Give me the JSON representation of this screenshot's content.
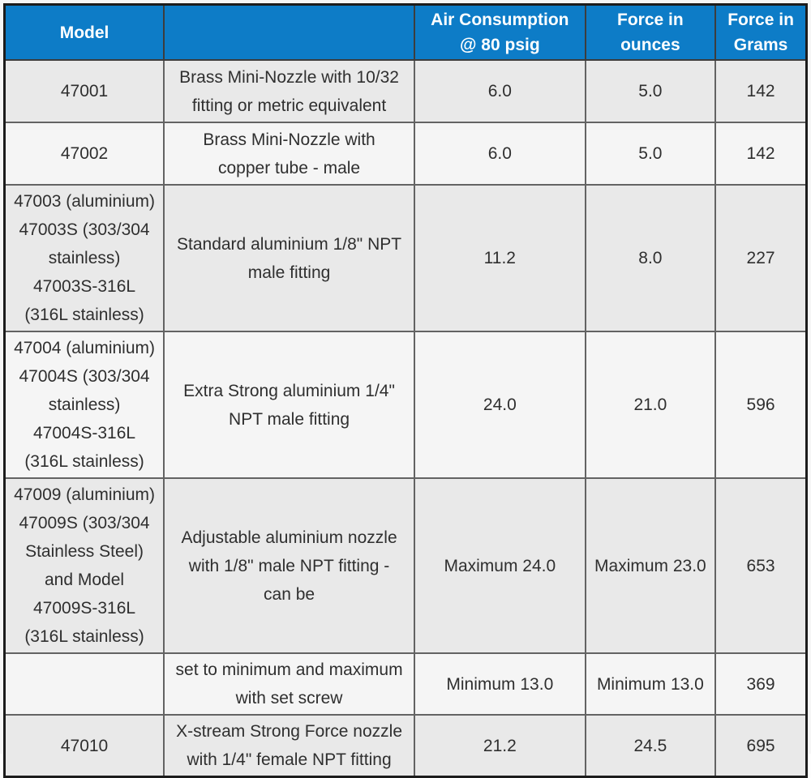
{
  "chart_data": {
    "type": "table",
    "title": "",
    "columns": [
      "Model",
      "",
      "Air Consumption\n@ 80 psig",
      "Force in\nounces",
      "Force in\nGrams"
    ],
    "rows": [
      {
        "model": "47001",
        "description": "Brass Mini-Nozzle with 10/32\nfitting or metric equivalent",
        "air_consumption": "6.0",
        "force_ounces": "5.0",
        "force_grams": "142"
      },
      {
        "model": "47002",
        "description": "Brass Mini-Nozzle with\ncopper tube - male",
        "air_consumption": "6.0",
        "force_ounces": "5.0",
        "force_grams": "142"
      },
      {
        "model": "47003 (aluminium)\n47003S (303/304\nstainless)\n47003S-316L\n(316L stainless)",
        "description": "Standard aluminium 1/8\" NPT\nmale fitting",
        "air_consumption": "11.2",
        "force_ounces": "8.0",
        "force_grams": "227"
      },
      {
        "model": "47004 (aluminium)\n47004S (303/304\nstainless)\n47004S-316L\n(316L stainless)",
        "description": "Extra Strong aluminium 1/4\"\nNPT male fitting",
        "air_consumption": "24.0",
        "force_ounces": "21.0",
        "force_grams": "596"
      },
      {
        "model": "47009 (aluminium)\n47009S (303/304\nStainless Steel)\nand Model\n47009S-316L\n(316L stainless)",
        "description": "Adjustable aluminium nozzle\nwith 1/8\" male NPT fitting -\ncan be",
        "air_consumption": "Maximum 24.0",
        "force_ounces": "Maximum 23.0",
        "force_grams": "653"
      },
      {
        "model": "",
        "description": "set to minimum and maximum\nwith set screw",
        "air_consumption": "Minimum 13.0",
        "force_ounces": "Minimum 13.0",
        "force_grams": "369"
      },
      {
        "model": "47010",
        "description": "X-stream Strong Force nozzle\nwith 1/4\" female NPT fitting",
        "air_consumption": "21.2",
        "force_ounces": "24.5",
        "force_grams": "695"
      }
    ],
    "layout": {
      "legend": "none",
      "grid": "on",
      "header_position": "top"
    }
  },
  "colors": {
    "header_bg": "#0d7cc7",
    "header_text": "#ffffff",
    "row_odd_bg": "#e9e9e9",
    "row_even_bg": "#f5f5f5",
    "grid_line": "#636363",
    "outer_border": "#1c1c1c",
    "body_text": "#2f2f2f"
  }
}
